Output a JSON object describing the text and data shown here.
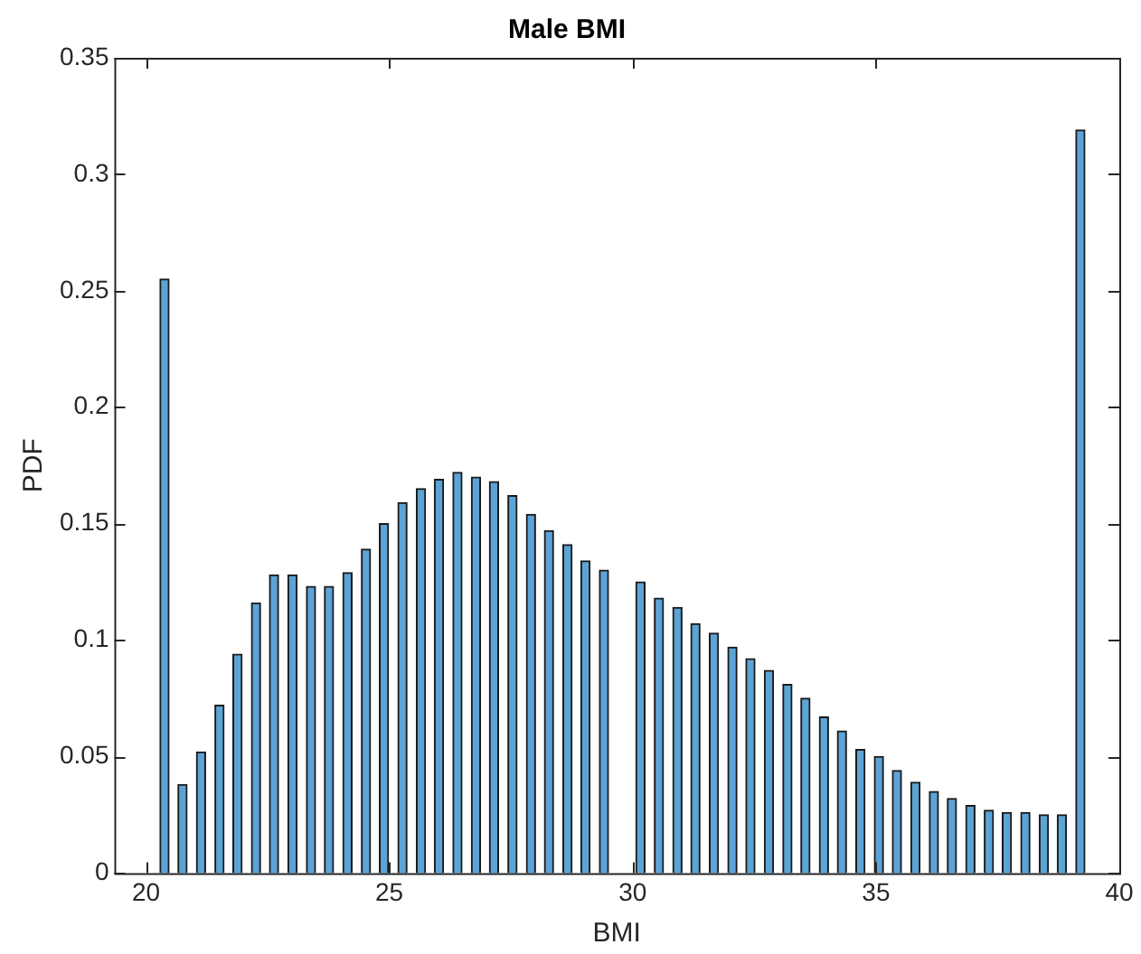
{
  "chart_data": {
    "type": "bar",
    "title": "Male BMI",
    "xlabel": "BMI",
    "ylabel": "PDF",
    "x": [
      20.38,
      20.75,
      21.13,
      21.51,
      21.88,
      22.26,
      22.63,
      23.01,
      23.39,
      23.76,
      24.14,
      24.52,
      24.89,
      25.27,
      25.65,
      26.02,
      26.4,
      26.78,
      27.15,
      27.53,
      27.91,
      28.28,
      28.66,
      29.03,
      29.41,
      29.79,
      30.16,
      30.54,
      30.92,
      31.29,
      31.67,
      32.05,
      32.42,
      32.8,
      33.18,
      33.55,
      33.93,
      34.3,
      34.68,
      35.06,
      35.43,
      35.81,
      36.19,
      36.56,
      36.94,
      37.32,
      37.69,
      38.07,
      38.45,
      38.82,
      39.2
    ],
    "values": [
      0.255,
      0.038,
      0.052,
      0.072,
      0.094,
      0.116,
      0.128,
      0.128,
      0.123,
      0.123,
      0.129,
      0.139,
      0.15,
      0.159,
      0.165,
      0.169,
      0.172,
      0.17,
      0.168,
      0.162,
      0.154,
      0.147,
      0.141,
      0.134,
      0.13,
      null,
      0.125,
      0.118,
      0.114,
      0.107,
      0.103,
      0.097,
      0.092,
      0.087,
      0.081,
      0.075,
      0.067,
      0.061,
      0.053,
      0.05,
      0.044,
      0.039,
      0.035,
      0.032,
      0.029,
      0.027,
      0.026,
      0.026,
      0.025,
      0.025,
      0.319
    ],
    "color": "#5ca3d6",
    "xlim": [
      19.35,
      40
    ],
    "xticks": [
      20,
      25,
      30,
      35,
      40
    ],
    "ylim": [
      0,
      0.35
    ],
    "yticks": [
      0,
      0.05,
      0.1,
      0.15,
      0.2,
      0.25,
      0.3,
      0.35
    ],
    "grid": false,
    "legend": false
  }
}
